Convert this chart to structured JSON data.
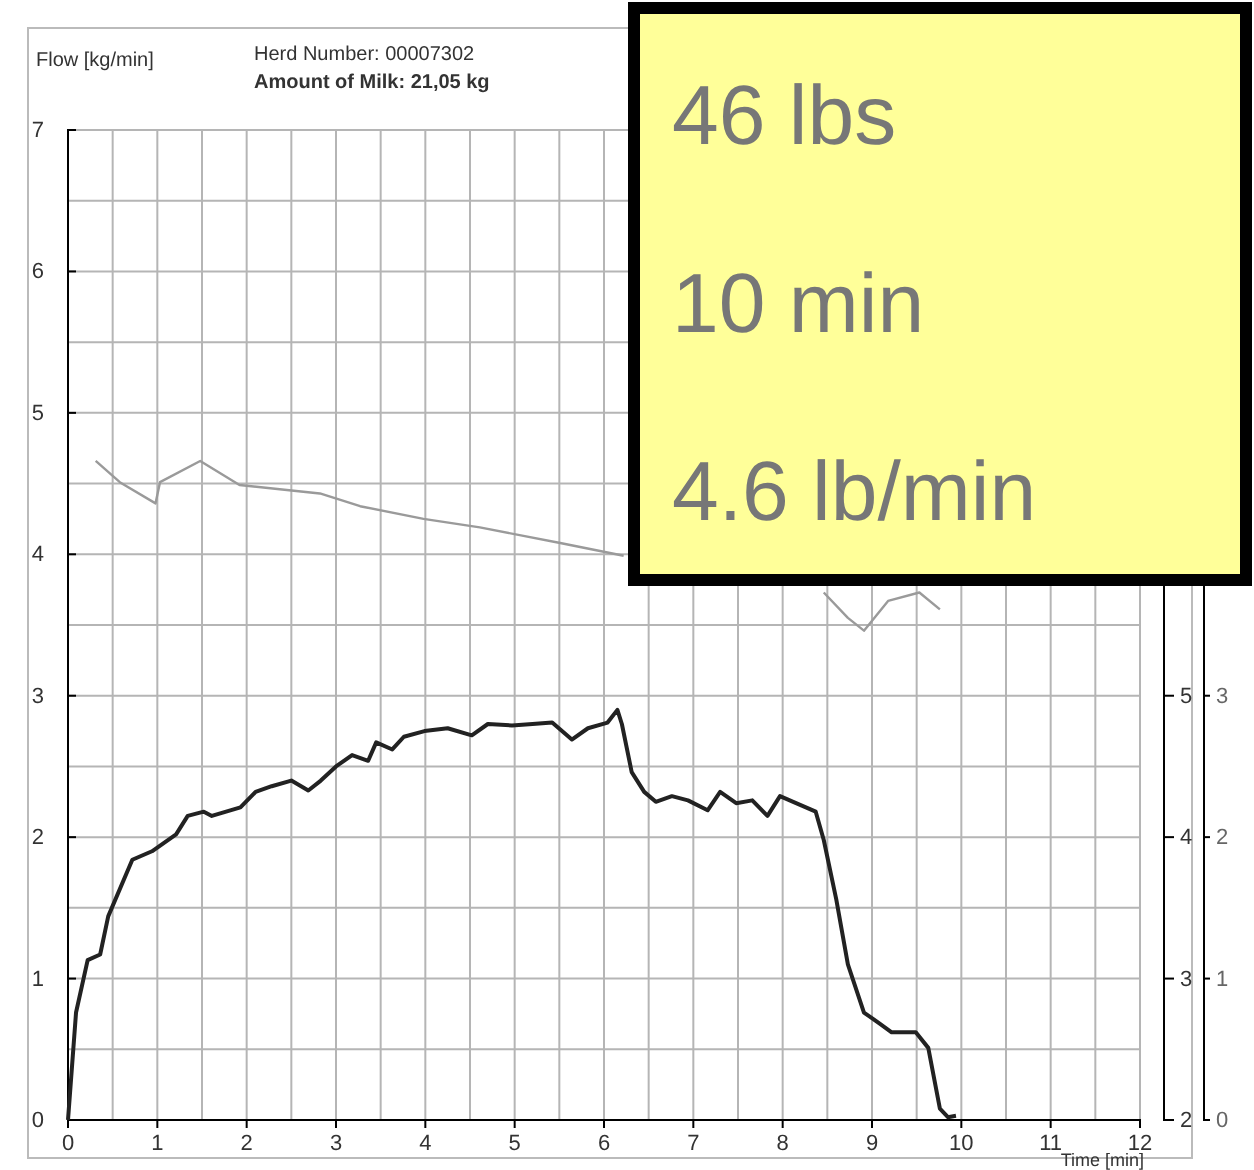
{
  "chart_data": {
    "type": "line",
    "ylabel": "Flow [kg/min]",
    "xlabel": "Time [min]",
    "annotations": [
      "Herd Number: 00007302",
      "Amount of Milk: 21,05 kg",
      "46 lbs",
      "10 min",
      "4.6 lb/min"
    ],
    "xlim": [
      0,
      12
    ],
    "xticks": [
      0,
      1,
      2,
      3,
      4,
      5,
      6,
      7,
      8,
      9,
      10,
      11,
      12
    ],
    "ylim": [
      0,
      7
    ],
    "yticks": [
      0,
      1,
      2,
      3,
      4,
      5,
      6,
      7
    ],
    "y2lim": [
      2,
      9
    ],
    "y2ticks": [
      2,
      3,
      4,
      5
    ],
    "y3lim": [
      0,
      7
    ],
    "y3ticks": [
      0,
      1,
      2,
      3
    ],
    "grid": true,
    "marker": "none",
    "line_style": "solid",
    "series": [
      {
        "color": "#222222",
        "x": [
          0,
          0.09,
          0.22,
          0.36,
          0.45,
          0.72,
          0.94,
          1.21,
          1.34,
          1.52,
          1.61,
          1.93,
          2.1,
          2.28,
          2.5,
          2.69,
          2.83,
          3.0,
          3.18,
          3.36,
          3.45,
          3.63,
          3.76,
          3.99,
          4.25,
          4.52,
          4.7,
          4.97,
          5.2,
          5.42,
          5.64,
          5.82,
          6.04,
          6.15,
          6.2,
          6.31,
          6.45,
          6.58,
          6.76,
          6.94,
          7.16,
          7.3,
          7.48,
          7.66,
          7.83,
          7.97,
          8.15,
          8.37,
          8.46,
          8.6,
          8.73,
          8.91,
          9.09,
          9.22,
          9.49,
          9.63,
          9.76,
          9.85,
          9.94
        ],
        "values": [
          0,
          0.76,
          1.13,
          1.17,
          1.44,
          1.84,
          1.9,
          2.02,
          2.15,
          2.18,
          2.15,
          2.21,
          2.32,
          2.36,
          2.4,
          2.33,
          2.4,
          2.5,
          2.58,
          2.54,
          2.67,
          2.62,
          2.71,
          2.75,
          2.77,
          2.72,
          2.8,
          2.79,
          2.8,
          2.81,
          2.69,
          2.77,
          2.81,
          2.9,
          2.8,
          2.46,
          2.32,
          2.25,
          2.29,
          2.26,
          2.19,
          2.32,
          2.24,
          2.26,
          2.15,
          2.29,
          2.24,
          2.18,
          1.98,
          1.56,
          1.1,
          0.76,
          0.68,
          0.62,
          0.62,
          0.51,
          0.08,
          0.02,
          0.03
        ]
      },
      {
        "color": "#9a9a9a",
        "x": [
          0.31,
          0.58,
          0.98,
          1.03,
          1.48,
          1.92,
          2.37,
          2.82,
          3.27,
          3.98,
          4.61,
          5.51,
          6.22,
          7.3,
          8.46,
          8.73,
          8.91,
          9.18,
          9.53,
          9.76
        ],
        "values": [
          4.66,
          4.51,
          4.36,
          4.51,
          4.66,
          4.49,
          4.46,
          4.43,
          4.34,
          4.25,
          4.19,
          4.08,
          3.99,
          null,
          3.73,
          3.55,
          3.46,
          3.67,
          3.73,
          3.61
        ]
      }
    ]
  }
}
